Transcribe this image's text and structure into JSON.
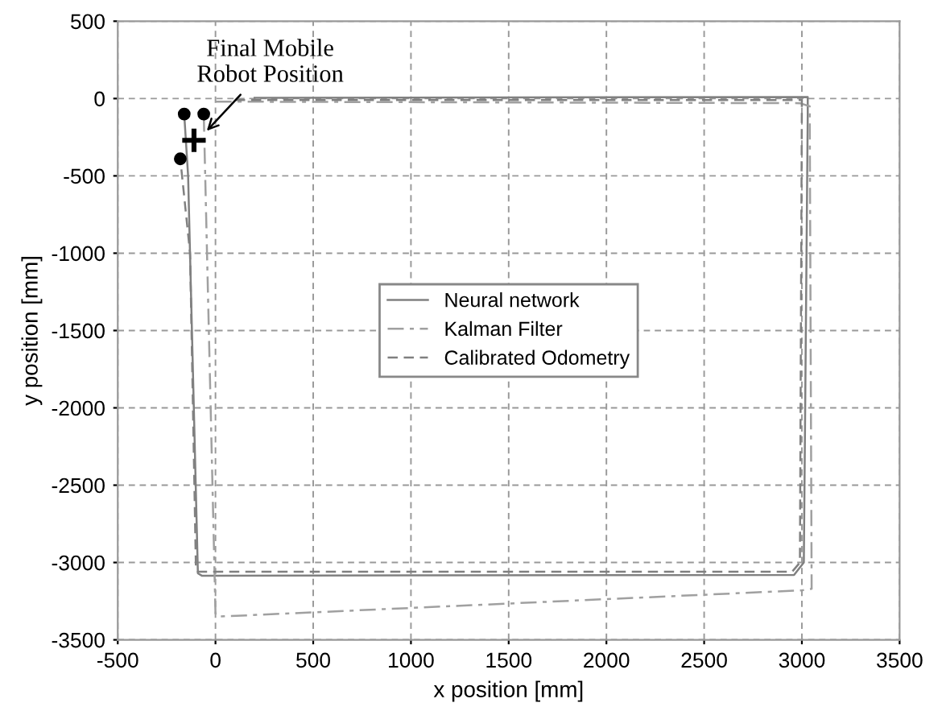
{
  "chart_data": {
    "type": "line",
    "xlabel": "x position [mm]",
    "ylabel": "y position [mm]",
    "xlim": [
      -500,
      3500
    ],
    "ylim": [
      -3500,
      500
    ],
    "xticks": [
      -500,
      0,
      500,
      1000,
      1500,
      2000,
      2500,
      3000,
      3500
    ],
    "yticks": [
      -3500,
      -3000,
      -2500,
      -2000,
      -1500,
      -1000,
      -500,
      0,
      500
    ],
    "grid": true,
    "legend": "center",
    "annotations": [
      {
        "text": "Final Mobile\nRobot Position",
        "x": -60,
        "y": -230
      }
    ],
    "series": [
      {
        "name": "Neural network",
        "color": "#808080",
        "line_style": "solid",
        "marker": "none",
        "x": [
          200,
          3030,
          3030,
          3010,
          2960,
          -70,
          -90,
          -140,
          -160
        ],
        "values": [
          5,
          10,
          -100,
          -3000,
          -3080,
          -3085,
          -3070,
          -500,
          -100
        ]
      },
      {
        "name": "Kalman Filter",
        "color": "#a0a0a0",
        "line_style": "dashdot",
        "marker": "none",
        "x": [
          0,
          2990,
          3040,
          3050,
          3000,
          10,
          0,
          -60
        ],
        "values": [
          -20,
          -30,
          -50,
          -3170,
          -3180,
          -3350,
          -3330,
          -100
        ]
      },
      {
        "name": "Calibrated Odometry",
        "color": "#808080",
        "line_style": "dashed",
        "marker": "none",
        "x": [
          100,
          3000,
          2990,
          2950,
          -90,
          -100,
          -130,
          -180
        ],
        "values": [
          -10,
          -10,
          -3000,
          -3060,
          -3060,
          -3040,
          -1000,
          -390
        ]
      },
      {
        "type": "scatter",
        "color": "#000000",
        "marker": "circle",
        "x": [
          -160,
          -60,
          -180
        ],
        "values": [
          -100,
          -100,
          -390
        ]
      },
      {
        "type": "scatter",
        "color": "#000000",
        "marker": "cross",
        "x": [
          -110
        ],
        "values": [
          -270
        ]
      }
    ]
  }
}
